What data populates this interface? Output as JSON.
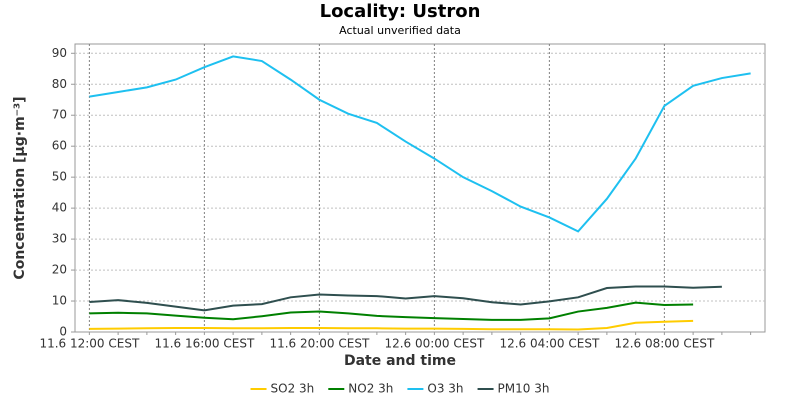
{
  "chart_data": {
    "type": "line",
    "title": "Locality: Ustron",
    "subtitle": "Actual unverified data",
    "x_label": "Date and time",
    "y_label": "Concentration [µg·m⁻³]",
    "categories": [
      "11.6 12:00 CEST",
      null,
      null,
      null,
      "11.6 16:00 CEST",
      null,
      null,
      null,
      "11.6 20:00 CEST",
      null,
      null,
      null,
      "12.6 00:00 CEST",
      null,
      null,
      null,
      "12.6 04:00 CEST",
      null,
      null,
      null,
      "12.6 08:00 CEST",
      null,
      null,
      null
    ],
    "ylim": [
      0,
      93
    ],
    "yticks": [
      0,
      10,
      20,
      30,
      40,
      50,
      60,
      70,
      80,
      90
    ],
    "grid": true,
    "legend": "bottom",
    "series": [
      {
        "name": "SO2 3h",
        "color": "#ffcc00",
        "values": [
          1,
          1.1,
          1.2,
          1.3,
          1.3,
          1.2,
          1.2,
          1.3,
          1.3,
          1.2,
          1.2,
          1.1,
          1.1,
          1,
          0.9,
          0.9,
          0.9,
          0.8,
          1.3,
          3,
          3.3,
          3.6,
          null,
          null
        ]
      },
      {
        "name": "NO2 3h",
        "color": "#008000",
        "values": [
          6,
          6.2,
          6,
          5.3,
          4.6,
          4.1,
          5.1,
          6.3,
          6.6,
          6,
          5.2,
          4.8,
          4.5,
          4.2,
          3.9,
          3.9,
          4.4,
          6.6,
          7.8,
          9.5,
          8.7,
          8.9,
          null,
          null
        ]
      },
      {
        "name": "O3 3h",
        "color": "#1ec0f0",
        "values": [
          76,
          77.5,
          79,
          81.5,
          85.5,
          89,
          87.5,
          81.5,
          75,
          70.5,
          67.5,
          61.5,
          56,
          50,
          45.5,
          40.5,
          37,
          32.5,
          43,
          56,
          73,
          79.5,
          82,
          83.5
        ]
      },
      {
        "name": "PM10 3h",
        "color": "#2f4f4f",
        "values": [
          9.7,
          10.3,
          9.4,
          8.2,
          7,
          8.5,
          9,
          11.2,
          12.1,
          11.8,
          11.6,
          10.8,
          11.6,
          10.9,
          9.6,
          8.9,
          9.9,
          11.2,
          14.2,
          14.7,
          14.7,
          14.3,
          14.6,
          null
        ]
      }
    ]
  }
}
